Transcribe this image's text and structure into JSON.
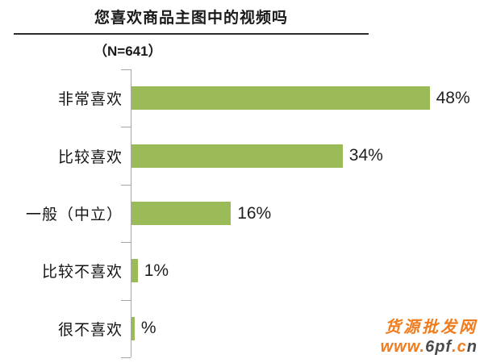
{
  "header": {
    "title": "您喜欢商品主图中的视频吗",
    "sample_size": "（N=641）"
  },
  "chart_data": {
    "type": "bar",
    "orientation": "horizontal",
    "title": "您喜欢商品主图中的视频吗",
    "subtitle": "（N=641）",
    "sample_n": 641,
    "categories": [
      "非常喜欢",
      "比较喜欢",
      "一般（中立）",
      "比较不喜欢",
      "很不喜欢"
    ],
    "values": [
      48,
      34,
      16,
      1,
      0.5
    ],
    "value_labels": [
      "48%",
      "34%",
      "16%",
      "1%",
      "%"
    ],
    "unit": "percent",
    "xlim": [
      0,
      52
    ],
    "grid": false,
    "legend": "none",
    "bar_color": "#9bbb59",
    "axis_color": "#a6a6a6"
  },
  "watermark": {
    "line1": "货源批发网",
    "line1_color": "#f07c1e",
    "line2_segments": [
      {
        "text": "www.",
        "color": "#f07c1e"
      },
      {
        "text": "6pf",
        "color": "#4a4a4a"
      },
      {
        "text": ".c",
        "color": "#f07c1e"
      },
      {
        "text": "n",
        "color": "#4a4a4a"
      }
    ]
  },
  "colors": {
    "bar_green": "#9bbb59",
    "axis_gray": "#a6a6a6",
    "text_dark": "#1a1a1a",
    "watermark_orange": "#f07c1e"
  }
}
